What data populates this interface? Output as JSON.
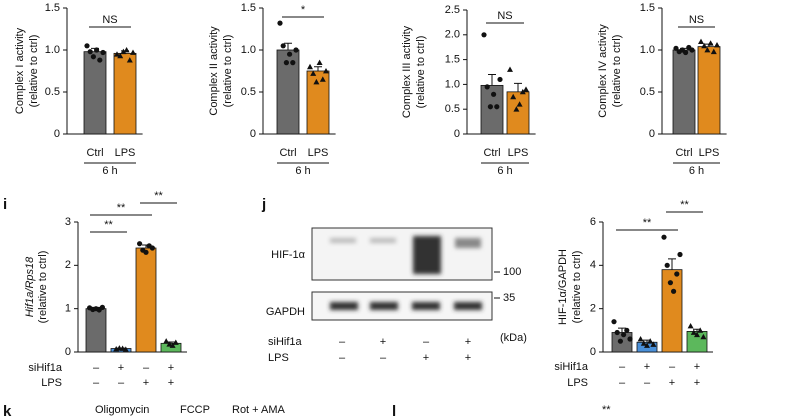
{
  "chart_data": [
    {
      "type": "bar",
      "ylabel": [
        "Complex I activity",
        "(relative to ctrl)"
      ],
      "categories": [
        "Ctrl",
        "LPS"
      ],
      "xlabel": "6 h",
      "values": [
        0.98,
        0.96
      ],
      "errors": [
        0.04,
        0.03
      ],
      "colors": [
        "#6b6b6b",
        "#e08a1e"
      ],
      "points": [
        [
          1.05,
          0.98,
          0.92,
          1.0,
          0.88,
          0.97
        ],
        [
          0.95,
          0.93,
          0.98,
          1.0,
          0.88,
          0.97
        ]
      ],
      "significance": [
        "NS"
      ],
      "ylim": [
        0,
        1.5
      ],
      "yticks": [
        0,
        0.5,
        {
          "value": 1,
          "label": "1.0"
        },
        1.5
      ]
    },
    {
      "type": "bar",
      "ylabel": [
        "Complex II activity",
        "(relative to ctrl)"
      ],
      "categories": [
        "Ctrl",
        "LPS"
      ],
      "xlabel": "6 h",
      "values": [
        1.0,
        0.75
      ],
      "errors": [
        0.08,
        0.05
      ],
      "colors": [
        "#6b6b6b",
        "#e08a1e"
      ],
      "points": [
        [
          1.32,
          1.05,
          0.85,
          0.95,
          0.85,
          1.0
        ],
        [
          0.8,
          0.72,
          0.62,
          0.85,
          0.65,
          0.75
        ]
      ],
      "significance": [
        "*"
      ],
      "ylim": [
        0,
        1.5
      ],
      "yticks": [
        0,
        0.5,
        {
          "value": 1,
          "label": "1.0"
        },
        1.5
      ]
    },
    {
      "type": "bar",
      "ylabel": [
        "Complex III activity",
        "(relative to ctrl)"
      ],
      "categories": [
        "Ctrl",
        "LPS"
      ],
      "xlabel": "6 h",
      "values": [
        0.98,
        0.85
      ],
      "errors": [
        0.22,
        0.17
      ],
      "colors": [
        "#6b6b6b",
        "#e08a1e"
      ],
      "points": [
        [
          2.0,
          0.95,
          0.55,
          0.8,
          0.55,
          1.1
        ],
        [
          1.3,
          0.75,
          0.5,
          0.6,
          0.85,
          0.9
        ]
      ],
      "significance": [
        "NS"
      ],
      "ylim": [
        0,
        2.5
      ],
      "yticks": [
        0,
        0.5,
        {
          "value": 1,
          "label": "1.0"
        },
        1.5,
        {
          "value": 2,
          "label": "2.0"
        },
        2.5
      ]
    },
    {
      "type": "bar",
      "ylabel": [
        "Complex IV activity",
        "(relative to ctrl)"
      ],
      "categories": [
        "Ctrl",
        "LPS"
      ],
      "xlabel": "6 h",
      "values": [
        1.0,
        1.04
      ],
      "errors": [
        0.02,
        0.03
      ],
      "colors": [
        "#6b6b6b",
        "#e08a1e"
      ],
      "points": [
        [
          1.02,
          0.98,
          1.0,
          0.97,
          1.03,
          1.0
        ],
        [
          1.1,
          1.05,
          1.0,
          1.08,
          0.98,
          1.06
        ]
      ],
      "significance": [
        "NS"
      ],
      "ylim": [
        0,
        1.5
      ],
      "yticks": [
        0,
        0.5,
        {
          "value": 1,
          "label": "1.0"
        },
        1.5
      ]
    },
    {
      "type": "bar",
      "panel": "i",
      "ylabel": [
        "Hif1a/Rps18",
        "(relative to ctrl)"
      ],
      "conditions": [
        {
          "name": "siHif1a",
          "values": [
            "–",
            "+",
            "–",
            "+"
          ]
        },
        {
          "name": "LPS",
          "values": [
            "–",
            "–",
            "+",
            "+"
          ]
        }
      ],
      "values": [
        1.0,
        0.08,
        2.4,
        0.2
      ],
      "errors": [
        0.03,
        0.01,
        0.07,
        0.03
      ],
      "colors": [
        "#6b6b6b",
        "#4a90d9",
        "#e08a1e",
        "#5cb85c"
      ],
      "points": [
        [
          1.02,
          0.98,
          1.0,
          0.97,
          1.03
        ],
        [
          0.07,
          0.09,
          0.08,
          0.06
        ],
        [
          2.5,
          2.35,
          2.3,
          2.45,
          2.4
        ],
        [
          0.25,
          0.18,
          0.15,
          0.22
        ]
      ],
      "significance": [
        "**",
        "**",
        "**"
      ],
      "ylim": [
        0,
        3
      ],
      "yticks": [
        0,
        1,
        2,
        3
      ]
    },
    {
      "type": "bar",
      "ylabel": [
        "HIF-1α/GAPDH",
        "(relative to ctrl)"
      ],
      "conditions": [
        {
          "name": "siHif1a",
          "values": [
            "–",
            "+",
            "–",
            "+"
          ]
        },
        {
          "name": "LPS",
          "values": [
            "–",
            "–",
            "+",
            "+"
          ]
        }
      ],
      "values": [
        0.9,
        0.45,
        3.8,
        0.95
      ],
      "errors": [
        0.2,
        0.1,
        0.5,
        0.1
      ],
      "colors": [
        "#6b6b6b",
        "#4a90d9",
        "#e08a1e",
        "#5cb85c"
      ],
      "points": [
        [
          1.4,
          0.9,
          0.5,
          0.8,
          1.0,
          0.6
        ],
        [
          0.6,
          0.4,
          0.3,
          0.5,
          0.35
        ],
        [
          5.3,
          4.0,
          3.2,
          2.8,
          3.6,
          4.5
        ],
        [
          1.2,
          0.9,
          0.8,
          1.0,
          0.7
        ]
      ],
      "significance": [
        "**",
        "**"
      ],
      "ylim": [
        0,
        6
      ],
      "yticks": [
        0,
        2,
        4,
        6
      ]
    }
  ],
  "blot": {
    "panel": "j",
    "bands": [
      "HIF-1α",
      "GAPDH"
    ],
    "markers": [
      "100",
      "35"
    ],
    "unit": "(kDa)",
    "conditions": [
      {
        "name": "siHif1a",
        "values": [
          "–",
          "+",
          "–",
          "+"
        ]
      },
      {
        "name": "LPS",
        "values": [
          "–",
          "–",
          "+",
          "+"
        ]
      }
    ]
  },
  "footer": {
    "panel_k": "k",
    "treatments": [
      "Oligomycin",
      "FCCP",
      "Rot + AMA"
    ],
    "panel_l": "l",
    "significance": "**"
  }
}
